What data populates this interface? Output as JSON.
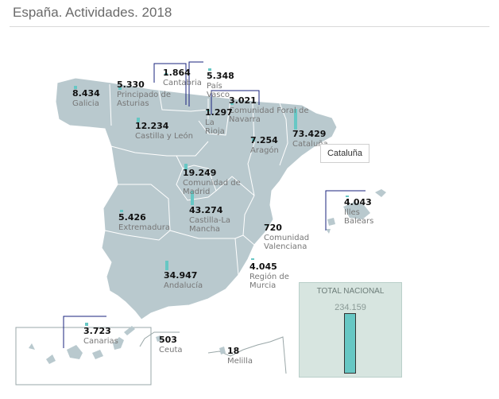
{
  "title": "España. Actividades. 2018",
  "callout": "Cataluña",
  "total": {
    "label": "TOTAL NACIONAL",
    "value": "234.159",
    "fill_fraction": 1.0
  },
  "colors": {
    "land": "#b9c9ce",
    "land_border": "#ffffff",
    "bar": "#67c7c4",
    "leader": "#1a237e",
    "inset_border": "#9aa7a8"
  },
  "regions": [
    {
      "id": "galicia",
      "value": "8.434",
      "lines": [
        "Galicia"
      ]
    },
    {
      "id": "asturias",
      "value": "5.330",
      "lines": [
        "Principado de",
        "Asturias"
      ]
    },
    {
      "id": "cantabria",
      "value": "1.864",
      "lines": [
        "Cantabria"
      ]
    },
    {
      "id": "pais-vasco",
      "value": "5.348",
      "lines": [
        "País",
        "Vasco"
      ]
    },
    {
      "id": "navarra",
      "value": "3.021",
      "lines": [
        "Comunidad Foral de",
        "Navarra"
      ]
    },
    {
      "id": "la-rioja",
      "value": "1.297",
      "lines": [
        "La",
        "Rioja"
      ]
    },
    {
      "id": "castilla-leon",
      "value": "12.234",
      "lines": [
        "Castilla y León"
      ]
    },
    {
      "id": "aragon",
      "value": "7.254",
      "lines": [
        "Aragón"
      ]
    },
    {
      "id": "cataluna",
      "value": "73.429",
      "lines": [
        "Cataluña"
      ]
    },
    {
      "id": "madrid",
      "value": "19.249",
      "lines": [
        "Comunidad de",
        "Madrid"
      ]
    },
    {
      "id": "castilla-la-mancha",
      "value": "43.274",
      "lines": [
        "Castilla-La",
        "Mancha"
      ]
    },
    {
      "id": "extremadura",
      "value": "5.426",
      "lines": [
        "Extremadura"
      ]
    },
    {
      "id": "valencia",
      "value": "720",
      "lines": [
        "Comunidad",
        "Valenciana"
      ]
    },
    {
      "id": "baleares",
      "value": "4.043",
      "lines": [
        "Illes",
        "Balears"
      ]
    },
    {
      "id": "murcia",
      "value": "4.045",
      "lines": [
        "Región de",
        "Murcia"
      ]
    },
    {
      "id": "andalucia",
      "value": "34.947",
      "lines": [
        "Andalucía"
      ]
    },
    {
      "id": "canarias",
      "value": "3.723",
      "lines": [
        "Canarias"
      ]
    },
    {
      "id": "ceuta",
      "value": "503",
      "lines": [
        "Ceuta"
      ]
    },
    {
      "id": "melilla",
      "value": "18",
      "lines": [
        "Melilla"
      ]
    }
  ]
}
